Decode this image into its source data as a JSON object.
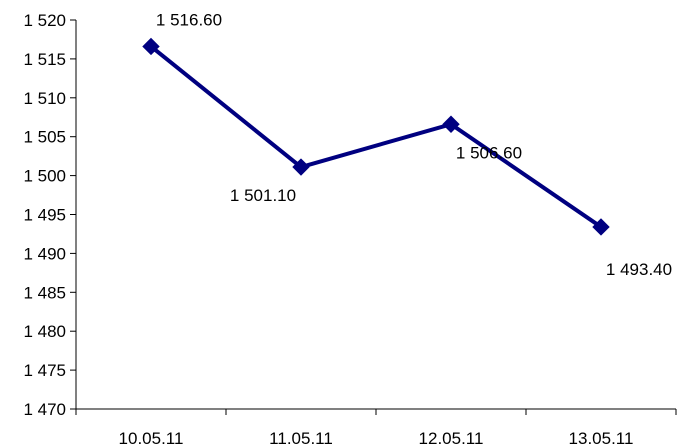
{
  "chart_data": {
    "type": "line",
    "title": "",
    "xlabel": "",
    "ylabel": "",
    "categories": [
      "10.05.11",
      "11.05.11",
      "12.05.11",
      "13.05.11"
    ],
    "series": [
      {
        "values": [
          1516.6,
          1501.1,
          1506.6,
          1493.4
        ],
        "labels": [
          "1 516.60",
          "1 501.10",
          "1 506.60",
          "1 493.40"
        ],
        "color": "#000080",
        "marker": "diamond"
      }
    ],
    "ylim": [
      1470,
      1520
    ],
    "yticks": [
      1470,
      1475,
      1480,
      1485,
      1490,
      1495,
      1500,
      1505,
      1510,
      1515,
      1520
    ],
    "ytick_labels": [
      "1 470",
      "1 475",
      "1 480",
      "1 485",
      "1 490",
      "1 495",
      "1 500",
      "1 505",
      "1 510",
      "1 515",
      "1 520"
    ],
    "grid": false,
    "legend": "none"
  }
}
